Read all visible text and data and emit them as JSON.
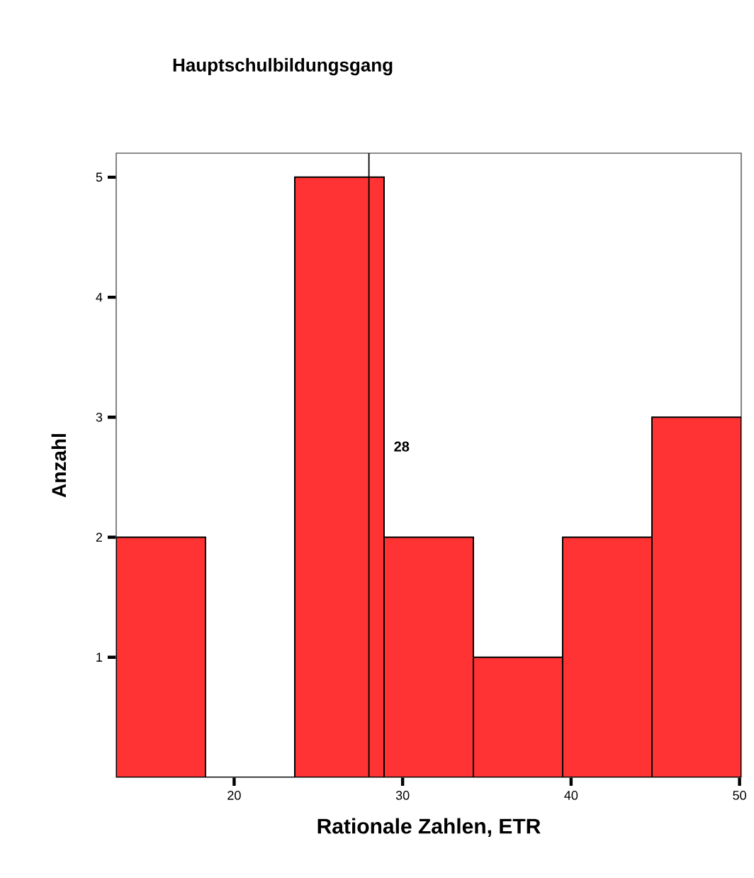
{
  "chart_data": {
    "type": "histogram",
    "title": "Hauptschulbildungsgang",
    "xlabel": "Rationale Zahlen, ETR",
    "ylabel": "Anzahl",
    "bins": [
      13.0,
      18.3,
      23.6,
      28.9,
      34.2,
      39.5,
      44.8,
      50.1
    ],
    "values": [
      2,
      0,
      5,
      2,
      1,
      2,
      3
    ],
    "color": "#ff3333",
    "xlim": [
      13.0,
      50.1
    ],
    "xticks": [
      20,
      30,
      40,
      50
    ],
    "ylim": [
      0,
      5.2
    ],
    "yticks": [
      1,
      2,
      3,
      4,
      5
    ],
    "ref_lines": [
      {
        "axis": "x",
        "value": 28,
        "label": "28",
        "color": "#000000"
      }
    ],
    "grid": false
  }
}
